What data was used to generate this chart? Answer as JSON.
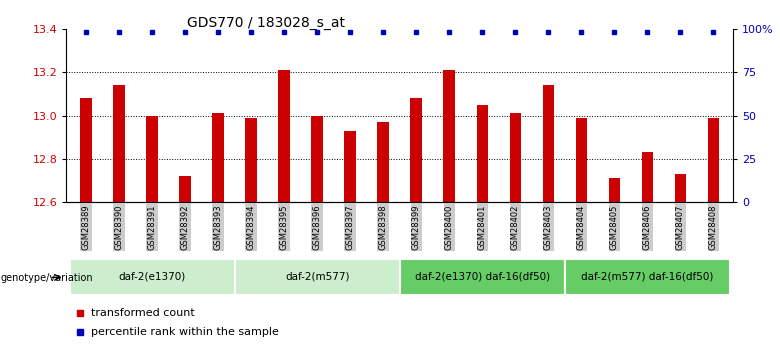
{
  "title": "GDS770 / 183028_s_at",
  "samples": [
    "GSM28389",
    "GSM28390",
    "GSM28391",
    "GSM28392",
    "GSM28393",
    "GSM28394",
    "GSM28395",
    "GSM28396",
    "GSM28397",
    "GSM28398",
    "GSM28399",
    "GSM28400",
    "GSM28401",
    "GSM28402",
    "GSM28403",
    "GSM28404",
    "GSM28405",
    "GSM28406",
    "GSM28407",
    "GSM28408"
  ],
  "values": [
    13.08,
    13.14,
    13.0,
    12.72,
    13.01,
    12.99,
    13.21,
    13.0,
    12.93,
    12.97,
    13.08,
    13.21,
    13.05,
    13.01,
    13.14,
    12.99,
    12.71,
    12.83,
    12.73,
    12.99
  ],
  "ylim_left": [
    12.6,
    13.4
  ],
  "ylim_right": [
    0,
    100
  ],
  "yticks_left": [
    12.6,
    12.8,
    13.0,
    13.2,
    13.4
  ],
  "yticks_right": [
    0,
    25,
    50,
    75,
    100
  ],
  "ytick_labels_right": [
    "0",
    "25",
    "50",
    "75",
    "100%"
  ],
  "bar_color": "#CC0000",
  "dot_color": "#0000BB",
  "groups": [
    {
      "label": "daf-2(e1370)",
      "start": 0,
      "end": 4,
      "color": "#cceecc"
    },
    {
      "label": "daf-2(m577)",
      "start": 5,
      "end": 9,
      "color": "#cceecc"
    },
    {
      "label": "daf-2(e1370) daf-16(df50)",
      "start": 10,
      "end": 14,
      "color": "#66cc66"
    },
    {
      "label": "daf-2(m577) daf-16(df50)",
      "start": 15,
      "end": 19,
      "color": "#66cc66"
    }
  ],
  "genotype_label": "genotype/variation",
  "legend_items": [
    {
      "label": "transformed count",
      "color": "#CC0000"
    },
    {
      "label": "percentile rank within the sample",
      "color": "#0000BB"
    }
  ],
  "tick_label_color_left": "#CC0000",
  "tick_label_color_right": "#0000BB",
  "bar_width": 0.35
}
